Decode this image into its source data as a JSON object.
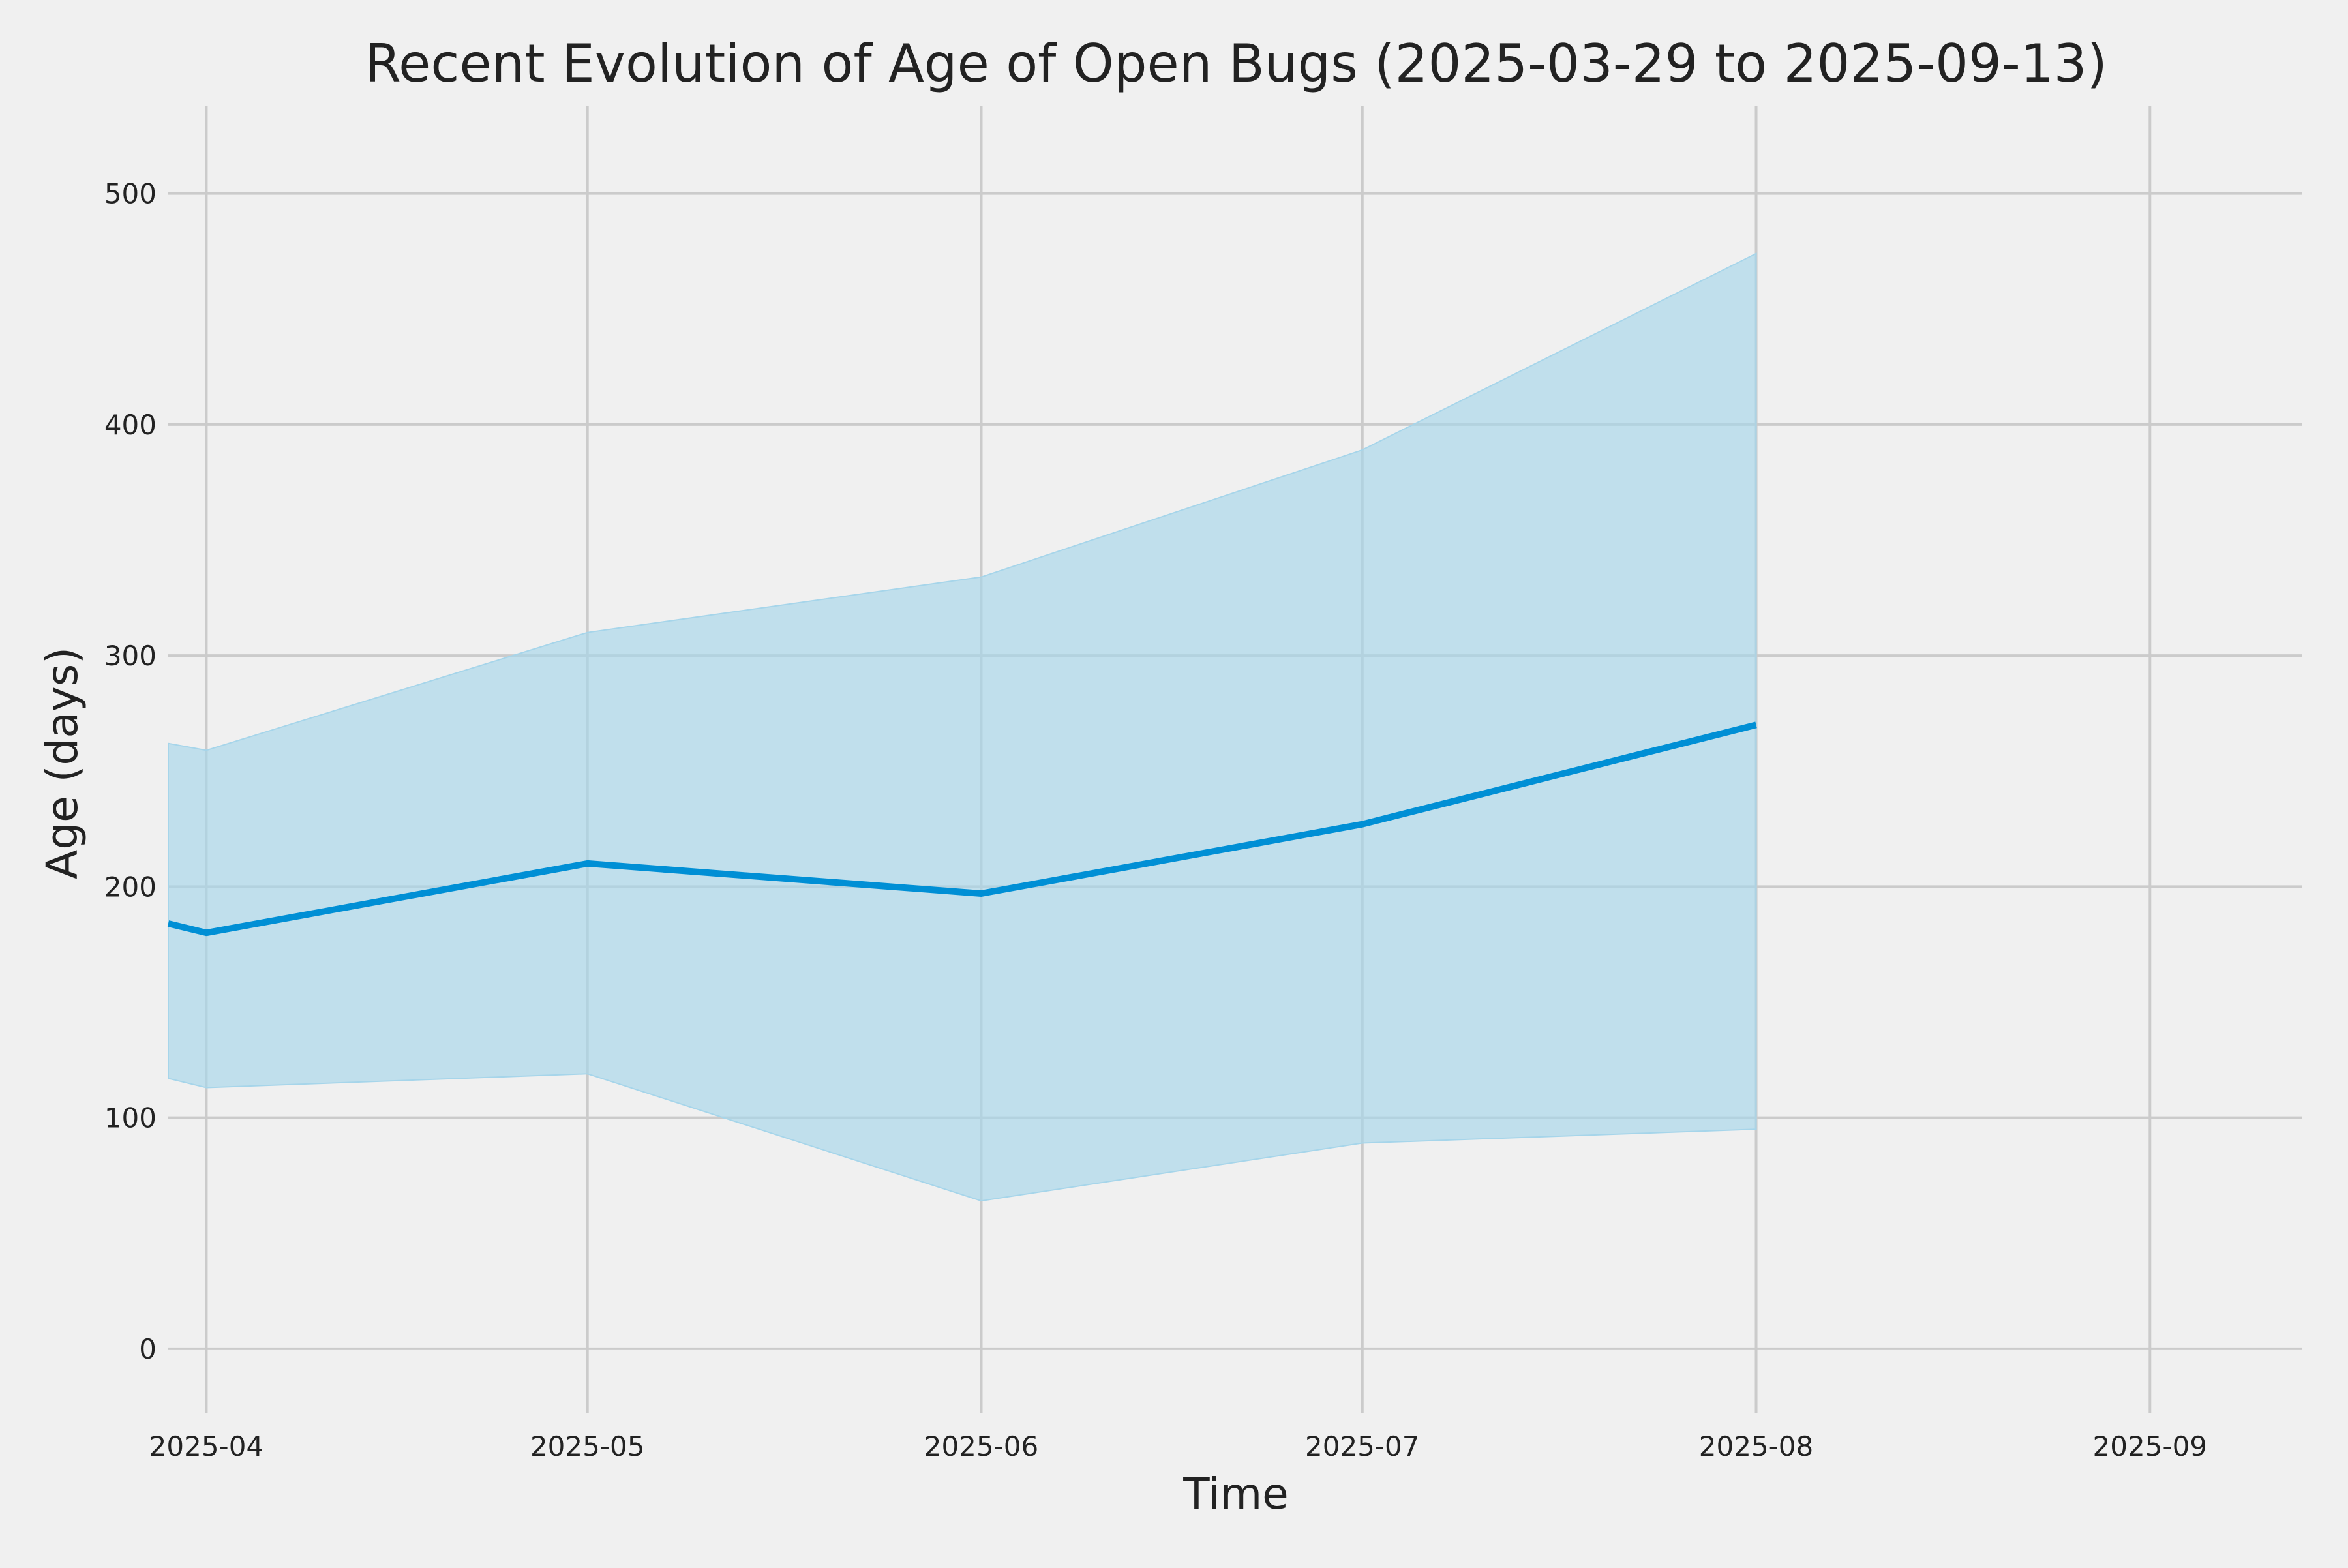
{
  "chart_data": {
    "type": "area",
    "title": "Recent Evolution of Age of Open Bugs (2025-03-29 to 2025-09-13)",
    "xlabel": "Time",
    "ylabel": "Age (days)",
    "x_tick_labels": [
      "2025-04",
      "2025-05",
      "2025-06",
      "2025-07",
      "2025-08",
      "2025-09"
    ],
    "x_ticks": [
      "2025-04-01",
      "2025-05-01",
      "2025-06-01",
      "2025-07-01",
      "2025-08-01",
      "2025-09-01"
    ],
    "xlim": [
      "2025-03-29",
      "2025-09-13"
    ],
    "y_ticks": [
      0,
      100,
      200,
      300,
      400,
      500
    ],
    "y_tick_labels": [
      "0",
      "100",
      "200",
      "300",
      "400",
      "500"
    ],
    "ylim": [
      -28,
      538
    ],
    "grid": true,
    "x": [
      "2025-03-29",
      "2025-04-01",
      "2025-05-01",
      "2025-06-01",
      "2025-07-01",
      "2025-08-01"
    ],
    "series": [
      {
        "role": "line",
        "values": [
          184,
          180,
          210,
          197,
          227,
          270
        ],
        "color": "#008fd5"
      },
      {
        "role": "band_upper",
        "values": [
          262,
          259,
          310,
          334,
          389,
          474
        ],
        "color": "#a6d5ea"
      },
      {
        "role": "band_lower",
        "values": [
          117,
          113,
          119,
          64,
          89,
          95
        ],
        "color": "#a6d5ea"
      }
    ],
    "colors": {
      "background": "#f0f0f0",
      "grid": "#cbcbcb",
      "line": "#008fd5",
      "band": "#a6d5ea",
      "text": "#222222"
    }
  }
}
